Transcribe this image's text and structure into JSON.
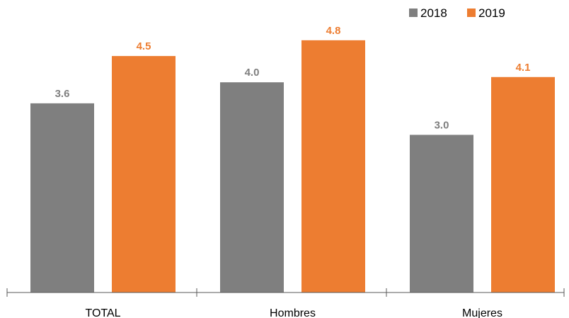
{
  "chart_data": {
    "type": "bar",
    "categories": [
      "TOTAL",
      "Hombres",
      "Mujeres"
    ],
    "series": [
      {
        "name": "2018",
        "color": "#7f7f7f",
        "values": [
          3.6,
          4.0,
          3.0
        ],
        "labels": [
          "3.6",
          "4.0",
          "3.0"
        ]
      },
      {
        "name": "2019",
        "color": "#ed7d31",
        "values": [
          4.5,
          4.8,
          4.1
        ],
        "labels": [
          "4.5",
          "4.8",
          "4.1"
        ]
      }
    ],
    "ylim": [
      0,
      5.2
    ],
    "grid": false,
    "legend_position": "top-right"
  }
}
